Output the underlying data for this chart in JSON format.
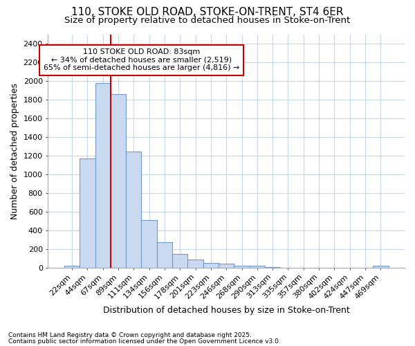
{
  "title1": "110, STOKE OLD ROAD, STOKE-ON-TRENT, ST4 6ER",
  "title2": "Size of property relative to detached houses in Stoke-on-Trent",
  "xlabel": "Distribution of detached houses by size in Stoke-on-Trent",
  "ylabel": "Number of detached properties",
  "categories": [
    "22sqm",
    "44sqm",
    "67sqm",
    "89sqm",
    "111sqm",
    "134sqm",
    "156sqm",
    "178sqm",
    "201sqm",
    "223sqm",
    "246sqm",
    "268sqm",
    "290sqm",
    "313sqm",
    "335sqm",
    "357sqm",
    "380sqm",
    "402sqm",
    "424sqm",
    "447sqm",
    "469sqm"
  ],
  "values": [
    25,
    1175,
    1980,
    1860,
    1245,
    515,
    275,
    150,
    90,
    50,
    45,
    20,
    25,
    10,
    3,
    3,
    3,
    3,
    3,
    3,
    20
  ],
  "bar_color": "#c9d9f0",
  "bar_edgecolor": "#7098c8",
  "vline_color": "#cc0000",
  "annotation_text": "110 STOKE OLD ROAD: 83sqm\n← 34% of detached houses are smaller (2,519)\n65% of semi-detached houses are larger (4,816) →",
  "annotation_box_facecolor": "#ffffff",
  "annotation_box_edgecolor": "#cc0000",
  "ylim": [
    0,
    2500
  ],
  "yticks": [
    0,
    200,
    400,
    600,
    800,
    1000,
    1200,
    1400,
    1600,
    1800,
    2000,
    2200,
    2400
  ],
  "footer1": "Contains HM Land Registry data © Crown copyright and database right 2025.",
  "footer2": "Contains public sector information licensed under the Open Government Licence v3.0.",
  "bg_color": "#ffffff",
  "plot_bg_color": "#ffffff",
  "grid_color": "#c8d4e8"
}
